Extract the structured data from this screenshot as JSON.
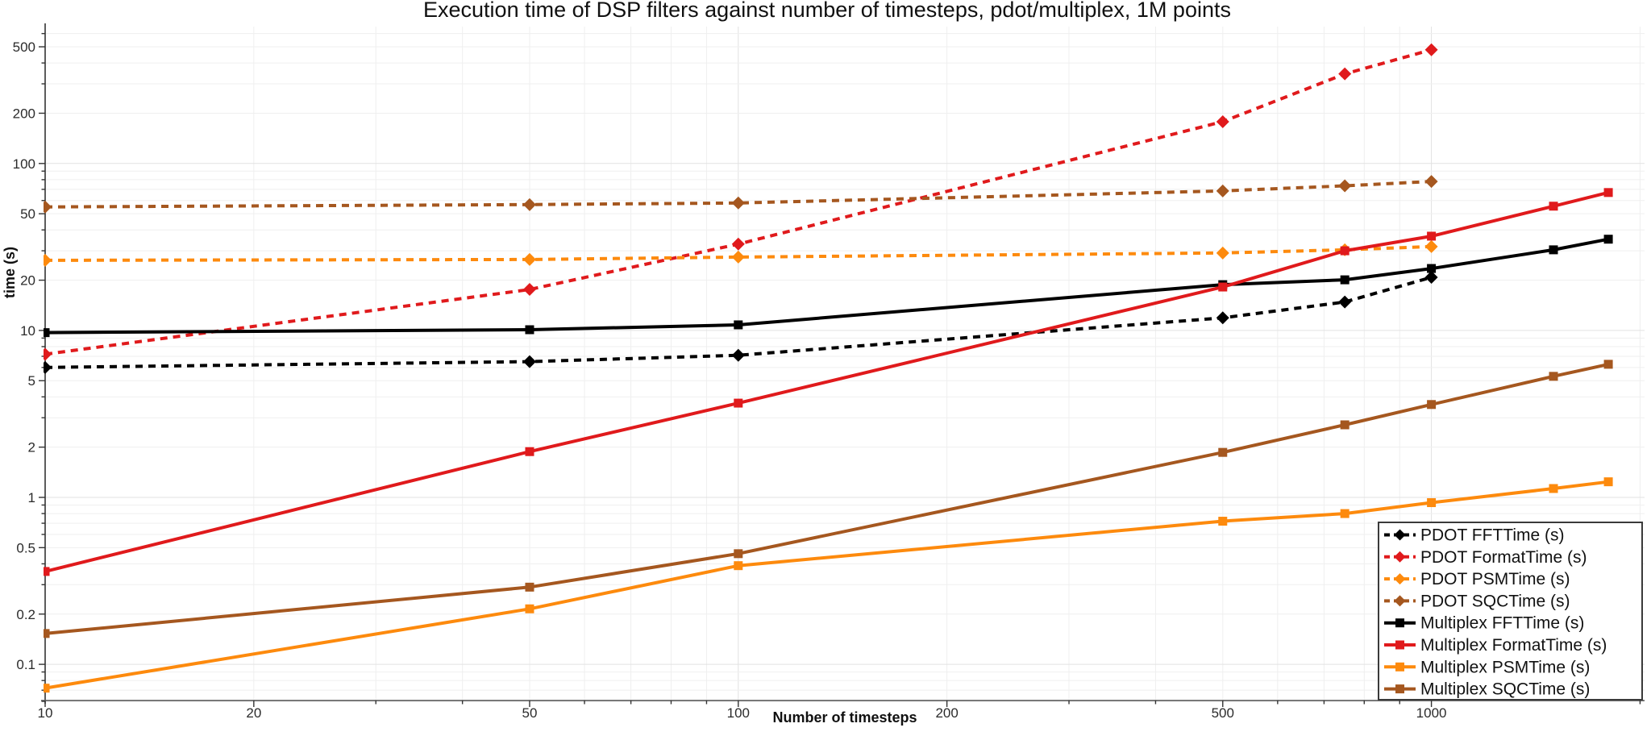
{
  "title": "Execution time of DSP filters against number of timesteps, pdot/multiplex, 1M points",
  "chart_data": {
    "type": "line",
    "x_scale": "log",
    "y_scale": "log",
    "xlabel": "Number of timesteps",
    "ylabel": "time (s)",
    "x_ticks": [
      10,
      20,
      50,
      100,
      200,
      500,
      1000
    ],
    "y_ticks": [
      0.1,
      0.2,
      0.5,
      1,
      2,
      5,
      10,
      20,
      50,
      100,
      200,
      500
    ],
    "x_range": [
      10,
      2030
    ],
    "y_range": [
      0.06,
      660
    ],
    "grid": true,
    "legend_position": "bottom-right",
    "series": [
      {
        "name": "PDOT FFTTime (s)",
        "color": "#000000",
        "style": "dashed",
        "marker": "diamond",
        "x": [
          10,
          50,
          100,
          500,
          750,
          1000
        ],
        "y": [
          6.0,
          6.5,
          7.1,
          11.9,
          14.8,
          20.8
        ]
      },
      {
        "name": "PDOT FormatTime (s)",
        "color": "#e01a1c",
        "style": "dashed",
        "marker": "diamond",
        "x": [
          10,
          50,
          100,
          500,
          750,
          1000
        ],
        "y": [
          7.2,
          17.6,
          32.9,
          178,
          344,
          480
        ]
      },
      {
        "name": "PDOT PSMTime (s)",
        "color": "#fd8a0d",
        "style": "dashed",
        "marker": "diamond",
        "x": [
          10,
          50,
          100,
          500,
          750,
          1000
        ],
        "y": [
          26.3,
          26.6,
          27.5,
          29.1,
          30.4,
          31.8
        ]
      },
      {
        "name": "PDOT SQCTime (s)",
        "color": "#a5571f",
        "style": "dashed",
        "marker": "diamond",
        "x": [
          10,
          50,
          100,
          500,
          750,
          1000
        ],
        "y": [
          54.9,
          56.7,
          58.0,
          68.5,
          73.5,
          78.0
        ]
      },
      {
        "name": "Multiplex FFTTime (s)",
        "color": "#000000",
        "style": "solid",
        "marker": "square",
        "x": [
          10,
          50,
          100,
          500,
          750,
          1000,
          1500,
          1800
        ],
        "y": [
          9.7,
          10.1,
          10.8,
          18.8,
          20.1,
          23.5,
          30.4,
          35.2
        ]
      },
      {
        "name": "Multiplex FormatTime (s)",
        "color": "#e01a1c",
        "style": "solid",
        "marker": "square",
        "x": [
          10,
          50,
          100,
          500,
          750,
          1000,
          1500,
          1800
        ],
        "y": [
          0.36,
          1.88,
          3.67,
          18.2,
          30.0,
          36.7,
          55.5,
          67.0
        ]
      },
      {
        "name": "Multiplex PSMTime (s)",
        "color": "#fd8a0d",
        "style": "solid",
        "marker": "square",
        "x": [
          10,
          50,
          100,
          500,
          750,
          1000,
          1500,
          1800
        ],
        "y": [
          0.072,
          0.215,
          0.39,
          0.72,
          0.8,
          0.93,
          1.13,
          1.24
        ]
      },
      {
        "name": "Multiplex SQCTime (s)",
        "color": "#a5571f",
        "style": "solid",
        "marker": "square",
        "x": [
          10,
          50,
          100,
          500,
          750,
          1000,
          1500,
          1800
        ],
        "y": [
          0.153,
          0.29,
          0.46,
          1.86,
          2.72,
          3.6,
          5.31,
          6.27
        ]
      }
    ]
  }
}
